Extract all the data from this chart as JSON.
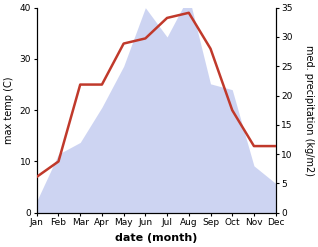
{
  "months": [
    "Jan",
    "Feb",
    "Mar",
    "Apr",
    "May",
    "Jun",
    "Jul",
    "Aug",
    "Sep",
    "Oct",
    "Nov",
    "Dec"
  ],
  "temperature": [
    7,
    10,
    25,
    25,
    33,
    34,
    38,
    39,
    32,
    20,
    13,
    13
  ],
  "precipitation": [
    2,
    10,
    12,
    18,
    25,
    35,
    30,
    37,
    22,
    21,
    8,
    5
  ],
  "temp_color": "#c0392b",
  "precip_fill_color": "#c5cdf0",
  "precip_alpha": 0.85,
  "temp_ylim": [
    0,
    40
  ],
  "precip_ylim": [
    0,
    35
  ],
  "temp_yticks": [
    0,
    10,
    20,
    30,
    40
  ],
  "precip_yticks": [
    0,
    5,
    10,
    15,
    20,
    25,
    30,
    35
  ],
  "xlabel": "date (month)",
  "ylabel_left": "max temp (C)",
  "ylabel_right": "med. precipitation (kg/m2)",
  "figsize": [
    3.18,
    2.47
  ],
  "dpi": 100,
  "bg_color": "#ffffff",
  "temp_linewidth": 1.8,
  "ylabel_fontsize": 7,
  "tick_labelsize": 6.5,
  "xlabel_fontsize": 8
}
